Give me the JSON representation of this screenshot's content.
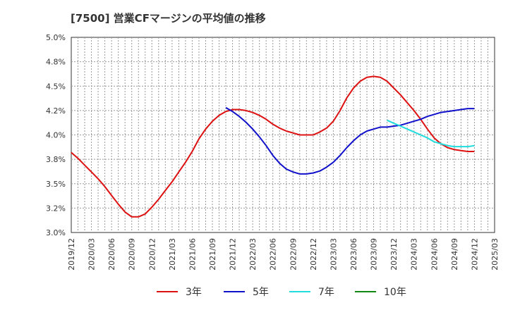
{
  "chart_data": {
    "type": "line",
    "title": "[7500]  営業CFマージンの平均値の推移",
    "xlabel": "",
    "ylabel": "",
    "ylim": [
      3.0,
      5.0
    ],
    "y_ticks": [
      "3.0%",
      "3.2%",
      "3.5%",
      "3.8%",
      "4.0%",
      "4.2%",
      "4.5%",
      "4.8%",
      "5.0%"
    ],
    "y_tick_values": [
      3.0,
      3.25,
      3.5,
      3.75,
      4.0,
      4.25,
      4.5,
      4.75,
      5.0
    ],
    "x_ticks": [
      "2019/12",
      "2020/03",
      "2020/06",
      "2020/09",
      "2020/12",
      "2021/03",
      "2021/06",
      "2021/09",
      "2021/12",
      "2022/03",
      "2022/06",
      "2022/09",
      "2022/12",
      "2023/03",
      "2023/06",
      "2023/09",
      "2023/12",
      "2024/03",
      "2024/06",
      "2024/09",
      "2024/12",
      "2025/03"
    ],
    "grid": true,
    "legend_position": "bottom",
    "series": [
      {
        "name": "3年",
        "color": "#dd1111",
        "points": [
          [
            "2019/12",
            3.82
          ],
          [
            "2020/01",
            3.76
          ],
          [
            "2020/02",
            3.69
          ],
          [
            "2020/03",
            3.62
          ],
          [
            "2020/04",
            3.55
          ],
          [
            "2020/05",
            3.47
          ],
          [
            "2020/06",
            3.38
          ],
          [
            "2020/07",
            3.29
          ],
          [
            "2020/08",
            3.21
          ],
          [
            "2020/09",
            3.16
          ],
          [
            "2020/10",
            3.16
          ],
          [
            "2020/11",
            3.19
          ],
          [
            "2020/12",
            3.26
          ],
          [
            "2021/01",
            3.34
          ],
          [
            "2021/02",
            3.43
          ],
          [
            "2021/03",
            3.52
          ],
          [
            "2021/04",
            3.62
          ],
          [
            "2021/05",
            3.72
          ],
          [
            "2021/06",
            3.83
          ],
          [
            "2021/07",
            3.96
          ],
          [
            "2021/08",
            4.06
          ],
          [
            "2021/09",
            4.14
          ],
          [
            "2021/10",
            4.2
          ],
          [
            "2021/11",
            4.24
          ],
          [
            "2021/12",
            4.26
          ],
          [
            "2022/01",
            4.26
          ],
          [
            "2022/02",
            4.25
          ],
          [
            "2022/03",
            4.23
          ],
          [
            "2022/04",
            4.2
          ],
          [
            "2022/05",
            4.16
          ],
          [
            "2022/06",
            4.11
          ],
          [
            "2022/07",
            4.07
          ],
          [
            "2022/08",
            4.04
          ],
          [
            "2022/09",
            4.02
          ],
          [
            "2022/10",
            4.0
          ],
          [
            "2022/11",
            4.0
          ],
          [
            "2022/12",
            4.0
          ],
          [
            "2023/01",
            4.03
          ],
          [
            "2023/02",
            4.07
          ],
          [
            "2023/03",
            4.14
          ],
          [
            "2023/04",
            4.25
          ],
          [
            "2023/05",
            4.38
          ],
          [
            "2023/06",
            4.48
          ],
          [
            "2023/07",
            4.55
          ],
          [
            "2023/08",
            4.59
          ],
          [
            "2023/09",
            4.6
          ],
          [
            "2023/10",
            4.59
          ],
          [
            "2023/11",
            4.55
          ],
          [
            "2023/12",
            4.48
          ],
          [
            "2024/01",
            4.41
          ],
          [
            "2024/02",
            4.33
          ],
          [
            "2024/03",
            4.25
          ],
          [
            "2024/04",
            4.16
          ],
          [
            "2024/05",
            4.06
          ],
          [
            "2024/06",
            3.97
          ],
          [
            "2024/07",
            3.91
          ],
          [
            "2024/08",
            3.87
          ],
          [
            "2024/09",
            3.85
          ],
          [
            "2024/10",
            3.84
          ],
          [
            "2024/11",
            3.83
          ],
          [
            "2024/12",
            3.83
          ]
        ]
      },
      {
        "name": "5年",
        "color": "#1111cc",
        "points": [
          [
            "2021/11",
            4.28
          ],
          [
            "2021/12",
            4.24
          ],
          [
            "2022/01",
            4.19
          ],
          [
            "2022/02",
            4.13
          ],
          [
            "2022/03",
            4.06
          ],
          [
            "2022/04",
            3.98
          ],
          [
            "2022/05",
            3.89
          ],
          [
            "2022/06",
            3.79
          ],
          [
            "2022/07",
            3.71
          ],
          [
            "2022/08",
            3.65
          ],
          [
            "2022/09",
            3.62
          ],
          [
            "2022/10",
            3.6
          ],
          [
            "2022/11",
            3.6
          ],
          [
            "2022/12",
            3.61
          ],
          [
            "2023/01",
            3.63
          ],
          [
            "2023/02",
            3.67
          ],
          [
            "2023/03",
            3.72
          ],
          [
            "2023/04",
            3.79
          ],
          [
            "2023/05",
            3.87
          ],
          [
            "2023/06",
            3.94
          ],
          [
            "2023/07",
            4.0
          ],
          [
            "2023/08",
            4.04
          ],
          [
            "2023/09",
            4.06
          ],
          [
            "2023/10",
            4.08
          ],
          [
            "2023/11",
            4.08
          ],
          [
            "2023/12",
            4.09
          ],
          [
            "2024/01",
            4.1
          ],
          [
            "2024/02",
            4.12
          ],
          [
            "2024/03",
            4.14
          ],
          [
            "2024/04",
            4.16
          ],
          [
            "2024/05",
            4.19
          ],
          [
            "2024/06",
            4.21
          ],
          [
            "2024/07",
            4.23
          ],
          [
            "2024/08",
            4.24
          ],
          [
            "2024/09",
            4.25
          ],
          [
            "2024/10",
            4.26
          ],
          [
            "2024/11",
            4.27
          ],
          [
            "2024/12",
            4.27
          ]
        ]
      },
      {
        "name": "7年",
        "color": "#22dddd",
        "points": [
          [
            "2023/11",
            4.15
          ],
          [
            "2023/12",
            4.12
          ],
          [
            "2024/01",
            4.09
          ],
          [
            "2024/02",
            4.06
          ],
          [
            "2024/03",
            4.03
          ],
          [
            "2024/04",
            4.0
          ],
          [
            "2024/05",
            3.97
          ],
          [
            "2024/06",
            3.93
          ],
          [
            "2024/07",
            3.91
          ],
          [
            "2024/08",
            3.89
          ],
          [
            "2024/09",
            3.88
          ],
          [
            "2024/10",
            3.88
          ],
          [
            "2024/11",
            3.88
          ],
          [
            "2024/12",
            3.89
          ]
        ]
      },
      {
        "name": "10年",
        "color": "#118811",
        "points": []
      }
    ]
  }
}
